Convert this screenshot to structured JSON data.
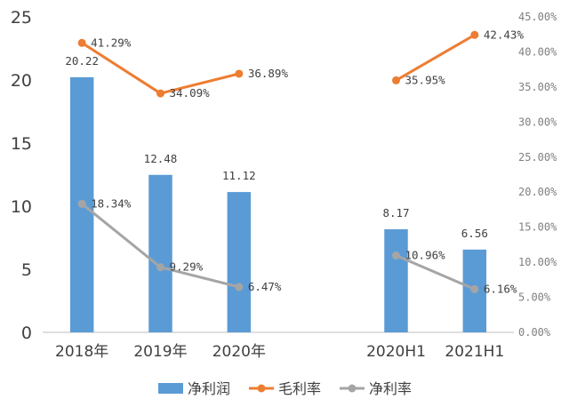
{
  "chart_data": {
    "type": "bar",
    "categories": [
      "2018年",
      "2019年",
      "2020年",
      "",
      "2020H1",
      "2021H1"
    ],
    "y_left": {
      "ticks": [
        "0",
        "5",
        "10",
        "15",
        "20",
        "25"
      ],
      "min": 0,
      "max": 25
    },
    "y_right": {
      "ticks": [
        "0.00%",
        "5.00%",
        "10.00%",
        "15.00%",
        "20.00%",
        "25.00%",
        "30.00%",
        "35.00%",
        "40.00%",
        "45.00%"
      ],
      "min": 0,
      "max": 45
    },
    "grid": false,
    "legend_position": "bottom",
    "series": [
      {
        "name": "净利润",
        "kind": "bar",
        "axis": "left",
        "color": "#5B9BD5",
        "values": [
          20.22,
          12.48,
          11.12,
          null,
          8.17,
          6.56
        ],
        "labels": [
          "20.22",
          "12.48",
          "11.12",
          "",
          "8.17",
          "6.56"
        ]
      },
      {
        "name": "毛利率",
        "kind": "line",
        "axis": "right",
        "color": "#ED7D31",
        "values": [
          41.29,
          34.09,
          36.89,
          null,
          35.95,
          42.43
        ],
        "labels": [
          "41.29%",
          "34.09%",
          "36.89%",
          "",
          "35.95%",
          "42.43%"
        ]
      },
      {
        "name": "净利率",
        "kind": "line",
        "axis": "right",
        "color": "#A5A5A5",
        "values": [
          18.34,
          9.29,
          6.47,
          null,
          10.96,
          6.16
        ],
        "labels": [
          "18.34%",
          "9.29%",
          "6.47%",
          "",
          "10.96%",
          "6.16%"
        ]
      }
    ]
  }
}
